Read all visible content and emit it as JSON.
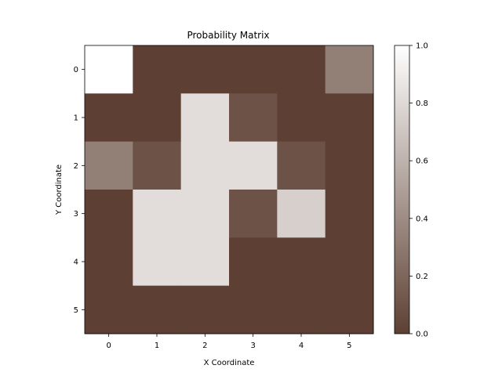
{
  "chart_data": {
    "type": "heatmap",
    "title": "Probability Matrix",
    "xlabel": "X Coordinate",
    "ylabel": "Y Coordinate",
    "x_ticks": [
      "0",
      "1",
      "2",
      "3",
      "4",
      "5"
    ],
    "y_ticks": [
      "0",
      "1",
      "2",
      "3",
      "4",
      "5"
    ],
    "values": [
      [
        1.0,
        0.0,
        0.0,
        0.0,
        0.0,
        0.33
      ],
      [
        0.0,
        0.0,
        0.82,
        0.1,
        0.0,
        0.0
      ],
      [
        0.33,
        0.1,
        0.82,
        0.82,
        0.1,
        0.0
      ],
      [
        0.0,
        0.82,
        0.82,
        0.1,
        0.75,
        0.0
      ],
      [
        0.0,
        0.82,
        0.82,
        0.0,
        0.0,
        0.0
      ],
      [
        0.0,
        0.0,
        0.0,
        0.0,
        0.0,
        0.0
      ]
    ],
    "colorbar": {
      "range": [
        0.0,
        1.0
      ],
      "ticks": [
        "0.0",
        "0.2",
        "0.4",
        "0.6",
        "0.8",
        "1.0"
      ],
      "color_low": "#5d4033",
      "color_high": "#ffffff"
    },
    "grid": false
  }
}
